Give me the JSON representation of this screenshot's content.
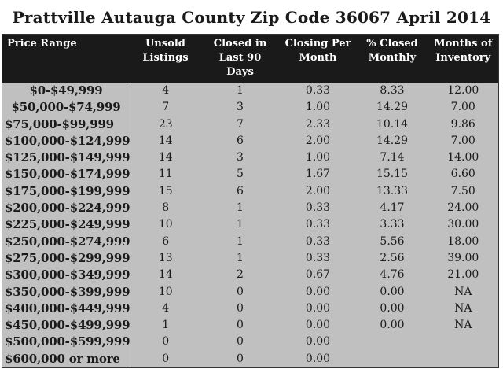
{
  "chart_data": {
    "type": "table",
    "title": "Prattville Autauga County Zip Code 36067 April 2014",
    "columns": [
      "Price Range",
      "Unsold\nListings",
      "Closed in\nLast 90 Days",
      "Closing Per\nMonth",
      "% Closed\nMonthly",
      "Months of\nInventory"
    ],
    "rows": [
      [
        "$0-$49,999",
        "4",
        "1",
        "0.33",
        "8.33",
        "12.00"
      ],
      [
        "$50,000-$74,999",
        "7",
        "3",
        "1.00",
        "14.29",
        "7.00"
      ],
      [
        "$75,000-$99,999",
        "23",
        "7",
        "2.33",
        "10.14",
        "9.86"
      ],
      [
        "$100,000-$124,999",
        "14",
        "6",
        "2.00",
        "14.29",
        "7.00"
      ],
      [
        "$125,000-$149,999",
        "14",
        "3",
        "1.00",
        "7.14",
        "14.00"
      ],
      [
        "$150,000-$174,999",
        "11",
        "5",
        "1.67",
        "15.15",
        "6.60"
      ],
      [
        "$175,000-$199,999",
        "15",
        "6",
        "2.00",
        "13.33",
        "7.50"
      ],
      [
        "$200,000-$224,999",
        "8",
        "1",
        "0.33",
        "4.17",
        "24.00"
      ],
      [
        "$225,000-$249,999",
        "10",
        "1",
        "0.33",
        "3.33",
        "30.00"
      ],
      [
        "$250,000-$274,999",
        "6",
        "1",
        "0.33",
        "5.56",
        "18.00"
      ],
      [
        "$275,000-$299,999",
        "13",
        "1",
        "0.33",
        "2.56",
        "39.00"
      ],
      [
        "$300,000-$349,999",
        "14",
        "2",
        "0.67",
        "4.76",
        "21.00"
      ],
      [
        "$350,000-$399,999",
        "10",
        "0",
        "0.00",
        "0.00",
        "NA"
      ],
      [
        "$400,000-$449,999",
        "4",
        "0",
        "0.00",
        "0.00",
        "NA"
      ],
      [
        "$450,000-$499,999",
        "1",
        "0",
        "0.00",
        "0.00",
        "NA"
      ],
      [
        "$500,000-$599,999",
        "0",
        "0",
        "0.00",
        "",
        ""
      ],
      [
        "$600,000 or more",
        "0",
        "0",
        "0.00",
        "",
        ""
      ]
    ],
    "layout_hints": {
      "grid": "vertical divider after first column only, no horizontal gridlines",
      "header_position": "top"
    },
    "colors": {
      "header_bg": "#1a1a1a",
      "header_text": "#ffffff",
      "body_bg": "#c0c0c0",
      "text": "#1a1a1a",
      "border": "#333333",
      "divider": "#4d4d4d",
      "page_bg": "#ffffff"
    }
  }
}
